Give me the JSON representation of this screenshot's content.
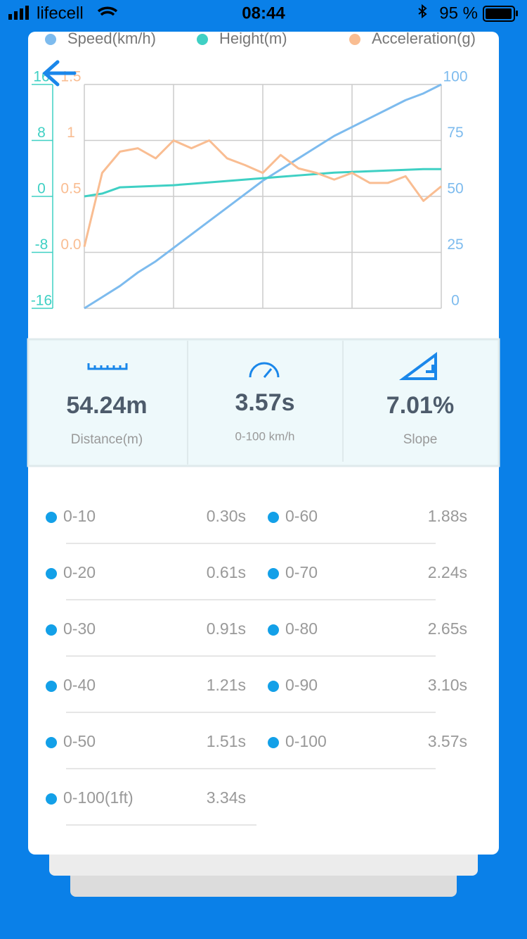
{
  "status_bar": {
    "carrier": "lifecell",
    "time": "08:44",
    "battery": "95 %"
  },
  "chart_data": {
    "type": "line",
    "categories": [
      null,
      null,
      null,
      null,
      null,
      null,
      null,
      null,
      null,
      null,
      null,
      null,
      null,
      null,
      null,
      null,
      null,
      null,
      null,
      null,
      null
    ],
    "series": [
      {
        "name": "Speed(km/h)",
        "color": "#7dbbee",
        "axis": "y2",
        "values": [
          0,
          5,
          10,
          16,
          21,
          27,
          33,
          39,
          45,
          51,
          57,
          62,
          67,
          72,
          77,
          81,
          85,
          89,
          93,
          96,
          100
        ]
      },
      {
        "name": "Height(m)",
        "color": "#3fd0c4",
        "values": [
          0,
          0.4,
          1.3,
          1.4,
          1.5,
          1.6,
          1.8,
          2,
          2.2,
          2.4,
          2.6,
          2.8,
          3,
          3.2,
          3.4,
          3.5,
          3.6,
          3.7,
          3.8,
          3.9,
          3.9
        ]
      },
      {
        "name": "Acceleration(g)",
        "color": "#f9bd92",
        "axis": "y3",
        "values": [
          0.05,
          0.71,
          0.9,
          0.93,
          0.84,
          1,
          0.93,
          1,
          0.84,
          0.78,
          0.71,
          0.87,
          0.75,
          0.71,
          0.65,
          0.71,
          0.62,
          0.62,
          0.68,
          0.46,
          0.59
        ]
      }
    ],
    "ylim": [
      -16,
      16
    ],
    "yticks": [
      16,
      8,
      0,
      -8,
      -16
    ],
    "y2lim": [
      0,
      100
    ],
    "y2ticks": [
      100,
      75,
      50,
      25,
      0
    ],
    "y3lim": [
      -0.5,
      1.5
    ],
    "y3ticks": [
      1.5,
      1,
      0.5,
      {
        "value": 0,
        "label": "0.0"
      }
    ],
    "grid": true
  },
  "stats": [
    {
      "value": "54.24m",
      "label": "Distance(m)"
    },
    {
      "value": "3.57s",
      "label": "0-100 km/h"
    },
    {
      "value": "7.01%",
      "label": "Slope"
    }
  ],
  "splits": [
    [
      {
        "label": "0-10",
        "time": "0.30s"
      },
      {
        "label": "0-60",
        "time": "1.88s"
      }
    ],
    [
      {
        "label": "0-20",
        "time": "0.61s"
      },
      {
        "label": "0-70",
        "time": "2.24s"
      }
    ],
    [
      {
        "label": "0-30",
        "time": "0.91s"
      },
      {
        "label": "0-80",
        "time": "2.65s"
      }
    ],
    [
      {
        "label": "0-40",
        "time": "1.21s"
      },
      {
        "label": "0-90",
        "time": "3.10s"
      }
    ],
    [
      {
        "label": "0-50",
        "time": "1.51s"
      },
      {
        "label": "0-100",
        "time": "3.57s"
      }
    ],
    [
      {
        "label": "0-100(1ft)",
        "time": "3.34s"
      }
    ]
  ]
}
